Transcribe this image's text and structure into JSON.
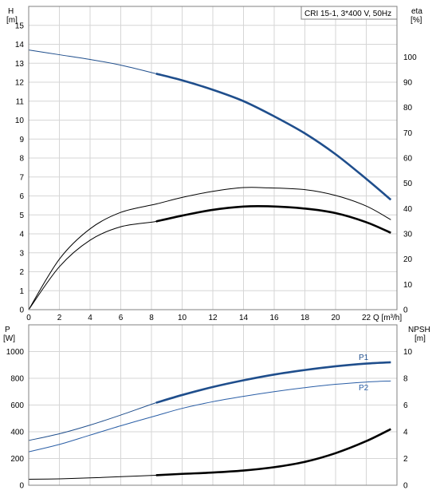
{
  "legend_box": "CRI 15-1, 3*400 V, 50Hz",
  "colors": {
    "blue": "#1f4e8c",
    "blue_thin": "#2a5ea6",
    "black": "#000000",
    "grid": "#d6d6d6",
    "frame": "#808080"
  },
  "chart_data": [
    {
      "type": "line",
      "panel": "top",
      "x_axis": {
        "label": "Q [m³/h]",
        "range": [
          0,
          24
        ],
        "ticks": [
          0,
          2,
          4,
          6,
          8,
          10,
          12,
          14,
          16,
          18,
          20,
          22
        ]
      },
      "y_left": {
        "label": "H",
        "unit": "[m]",
        "range": [
          0,
          16
        ],
        "ticks": [
          0,
          1,
          2,
          3,
          4,
          5,
          6,
          7,
          8,
          9,
          10,
          11,
          12,
          13,
          14,
          15
        ]
      },
      "y_right": {
        "label": "eta",
        "unit": "[%]",
        "range": [
          0,
          120
        ],
        "ticks": [
          0,
          10,
          20,
          30,
          40,
          50,
          60,
          70,
          80,
          90,
          100
        ]
      },
      "grid": true,
      "series": [
        {
          "axis": "left",
          "color": "#1f4e8c",
          "x": [
            0,
            2,
            4,
            6,
            8.3,
            10,
            12,
            14,
            16,
            18,
            20,
            22,
            23.6
          ],
          "y": [
            13.7,
            13.45,
            13.2,
            12.9,
            12.45,
            12.1,
            11.6,
            11.0,
            10.2,
            9.3,
            8.2,
            6.9,
            5.8
          ],
          "bold_from": 8.3
        },
        {
          "axis": "right",
          "color": "#000000",
          "x": [
            0,
            2,
            4,
            6,
            8.3,
            10,
            12,
            14,
            15.6,
            18,
            20,
            22,
            23.6
          ],
          "y": [
            0,
            20,
            32,
            38.5,
            41.8,
            44.4,
            46.8,
            48.3,
            48.2,
            47.5,
            45.2,
            41.0,
            35.6
          ],
          "bold_from": null
        },
        {
          "axis": "right",
          "color": "#000000",
          "x": [
            0,
            2,
            4,
            6,
            8.3,
            10,
            12,
            14,
            15.6,
            18,
            20,
            22,
            23.6
          ],
          "y": [
            0,
            17,
            27.5,
            32.8,
            34.9,
            37.2,
            39.5,
            40.8,
            40.9,
            40.0,
            38.2,
            34.6,
            30.4
          ],
          "bold_from": 8.3
        }
      ]
    },
    {
      "type": "line",
      "panel": "bottom",
      "x_axis": {
        "range": [
          0,
          24
        ],
        "ticks": [
          0,
          2,
          4,
          6,
          8,
          10,
          12,
          14,
          16,
          18,
          20,
          22
        ]
      },
      "y_left": {
        "label": "P",
        "unit": "[W]",
        "range": [
          0,
          1200
        ],
        "ticks": [
          0,
          200,
          400,
          600,
          800,
          1000
        ]
      },
      "y_right": {
        "label": "NPSH",
        "unit": "[m]",
        "range": [
          0,
          12
        ],
        "ticks": [
          0,
          2,
          4,
          6,
          8,
          10
        ]
      },
      "grid": true,
      "series": [
        {
          "name": "P1",
          "axis": "left",
          "color": "#1f4e8c",
          "x": [
            0,
            2,
            4,
            6,
            8.3,
            10,
            12,
            14,
            16,
            18,
            20,
            22,
            23.6
          ],
          "y": [
            335,
            385,
            450,
            525,
            617,
            675,
            735,
            785,
            828,
            862,
            890,
            910,
            920
          ],
          "bold_from": 8.3
        },
        {
          "name": "P2",
          "axis": "left",
          "color": "#2a5ea6",
          "x": [
            0,
            2,
            4,
            6,
            8.3,
            10,
            12,
            14,
            16,
            18,
            20,
            22,
            23.6
          ],
          "y": [
            250,
            305,
            375,
            445,
            520,
            575,
            625,
            665,
            700,
            730,
            755,
            772,
            780
          ],
          "bold_from": null
        },
        {
          "axis": "right",
          "color": "#000000",
          "x": [
            0,
            2,
            4,
            6,
            8.3,
            10,
            12,
            14,
            16,
            18,
            20,
            22,
            23.6
          ],
          "y": [
            0.45,
            0.48,
            0.55,
            0.64,
            0.75,
            0.85,
            0.95,
            1.1,
            1.35,
            1.75,
            2.4,
            3.3,
            4.2
          ],
          "bold_from": 8.3
        }
      ]
    }
  ]
}
